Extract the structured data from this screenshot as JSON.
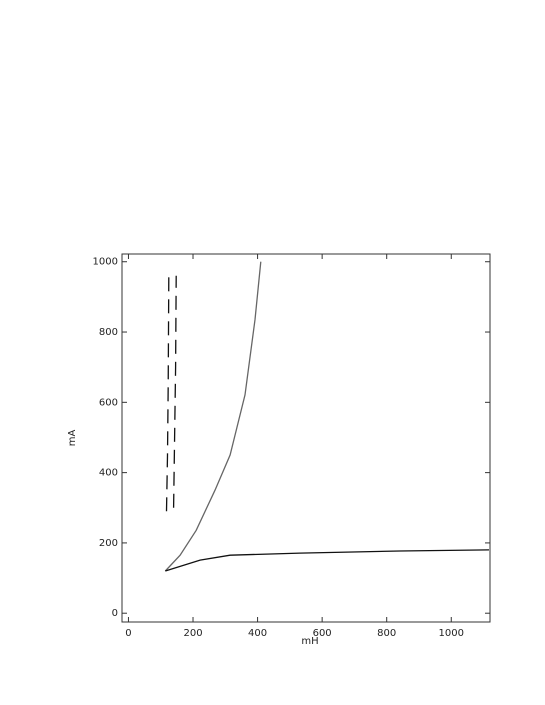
{
  "chart_data": {
    "type": "line",
    "xlabel": "mH",
    "ylabel": "mA",
    "xlim": [
      -20,
      1120
    ],
    "ylim": [
      -25,
      1022
    ],
    "xticks": [
      0,
      200,
      400,
      600,
      800,
      1000
    ],
    "yticks": [
      0,
      200,
      400,
      600,
      800,
      1000
    ],
    "series": [
      {
        "color": "#666666",
        "dash": false,
        "x": [
          114,
          160,
          210,
          268,
          315,
          361,
          392,
          410
        ],
        "values": [
          120,
          165,
          236,
          350,
          450,
          621,
          835,
          1000
        ]
      },
      {
        "color": "#111111",
        "dash": false,
        "x": [
          114,
          222,
          315,
          531,
          840,
          1117
        ],
        "values": [
          120,
          151,
          165,
          171,
          177,
          180
        ]
      },
      {
        "color": "#111111",
        "dash": true,
        "x": [
          118,
          121,
          123,
          125
        ],
        "values": [
          290,
          450,
          650,
          960
        ]
      },
      {
        "color": "#111111",
        "dash": true,
        "x": [
          140,
          143,
          146,
          148
        ],
        "values": [
          300,
          500,
          700,
          960
        ]
      }
    ]
  }
}
